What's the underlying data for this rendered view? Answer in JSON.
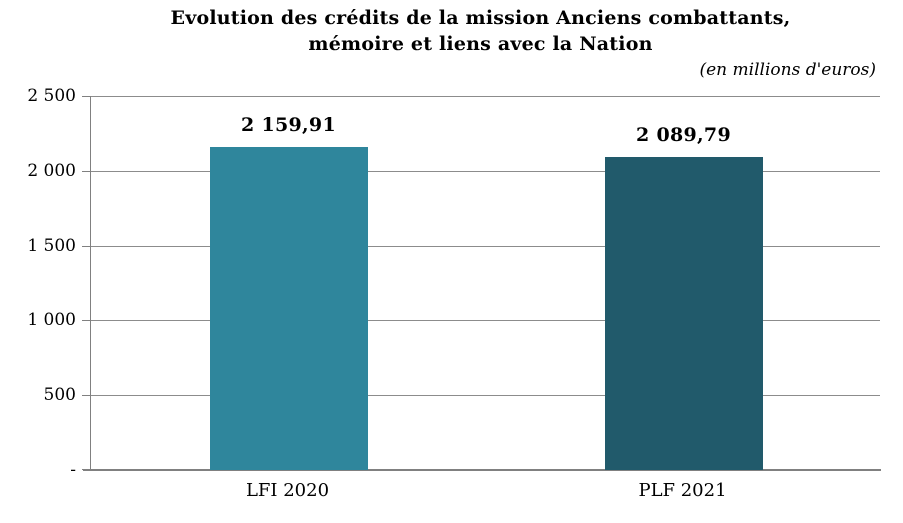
{
  "chart_data": {
    "type": "bar",
    "title_lines": [
      "Evolution des crédits de la mission Anciens combattants,",
      "mémoire et liens avec la Nation"
    ],
    "subtitle": "(en millions d'euros)",
    "categories": [
      "LFI 2020",
      "PLF 2021"
    ],
    "values": [
      2159.91,
      2089.79
    ],
    "value_labels": [
      "2 159,91",
      "2 089,79"
    ],
    "bar_colors": [
      "#2F869C",
      "#215A6B"
    ],
    "xlabel": "",
    "ylabel": "",
    "ylim": [
      0,
      2500
    ],
    "ytick_step": 500,
    "ytick_labels_top_to_bottom": [
      "2 500",
      "2 000",
      "1 500",
      "1 000",
      "500",
      "-"
    ],
    "grid": true,
    "legend": "none",
    "gridline_color": "#8C8C8C",
    "axis_color": "#808080",
    "background_color": "#FFFFFF"
  }
}
